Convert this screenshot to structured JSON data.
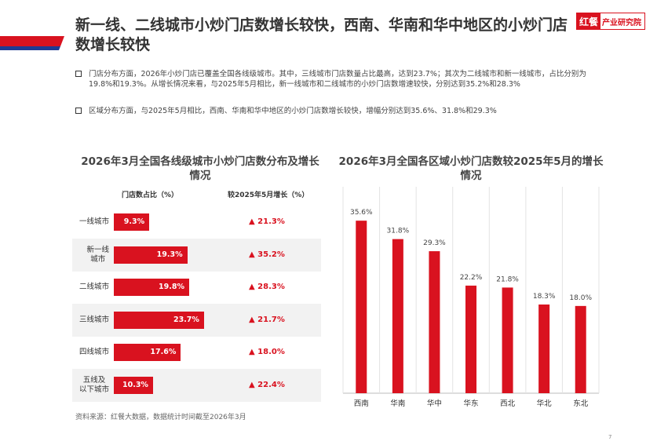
{
  "header": {
    "title": "新一线、二线城市小炒门店数增长较快，西南、华南和华中地区的小炒门店数增长较快",
    "logo_left": "红餐",
    "logo_right": "产业研究院"
  },
  "bullets": [
    "门店分布方面，2026年小炒门店已覆盖全国各线级城市。其中，三线城市门店数量占比最高，达到23.7%；其次为二线城市和新一线城市，占比分别为19.8%和19.3%。从增长情况来看，与2025年5月相比，新一线城市和二线城市的小炒门店数增速较快，分别达到35.2%和28.3%",
    "区域分布方面，与2025年5月相比，西南、华南和华中地区的小炒门店数增长较快，增幅分别达到35.6%、31.8%和29.3%"
  ],
  "colors": {
    "accent": "#d9121f",
    "navy": "#1f3a93"
  },
  "chart_data": [
    {
      "type": "table",
      "title": "2026年3月全国各线级城市小炒门店数分布及增长情况",
      "columns": [
        "门店数占比（%）",
        "较2025年5月增长（%）"
      ],
      "rows": [
        {
          "label": "一线城市",
          "share": 9.3,
          "share_label": "9.3%",
          "growth": "▲ 21.3%"
        },
        {
          "label": "新一线\n城市",
          "share": 19.3,
          "share_label": "19.3%",
          "growth": "▲ 35.2%"
        },
        {
          "label": "二线城市",
          "share": 19.8,
          "share_label": "19.8%",
          "growth": "▲ 28.3%"
        },
        {
          "label": "三线城市",
          "share": 23.7,
          "share_label": "23.7%",
          "growth": "▲ 21.7%"
        },
        {
          "label": "四线城市",
          "share": 17.6,
          "share_label": "17.6%",
          "growth": "▲ 18.0%"
        },
        {
          "label": "五线及\n以下城市",
          "share": 10.3,
          "share_label": "10.3%",
          "growth": "▲ 22.4%"
        }
      ]
    },
    {
      "type": "bar",
      "title": "2026年3月全国各区域小炒门店数较2025年5月的增长情况",
      "categories": [
        "西南",
        "华南",
        "华中",
        "华东",
        "西北",
        "华北",
        "东北"
      ],
      "values": [
        35.6,
        31.8,
        29.3,
        22.2,
        21.8,
        18.3,
        18.0
      ],
      "labels": [
        "35.6%",
        "31.8%",
        "29.3%",
        "22.2%",
        "21.8%",
        "18.3%",
        "18.0%"
      ],
      "ylim": [
        0,
        40
      ],
      "grid": "vertical separators"
    }
  ],
  "footer": {
    "source": "资料来源：红餐大数据，数据统计时间截至2026年3月",
    "page": "7"
  }
}
